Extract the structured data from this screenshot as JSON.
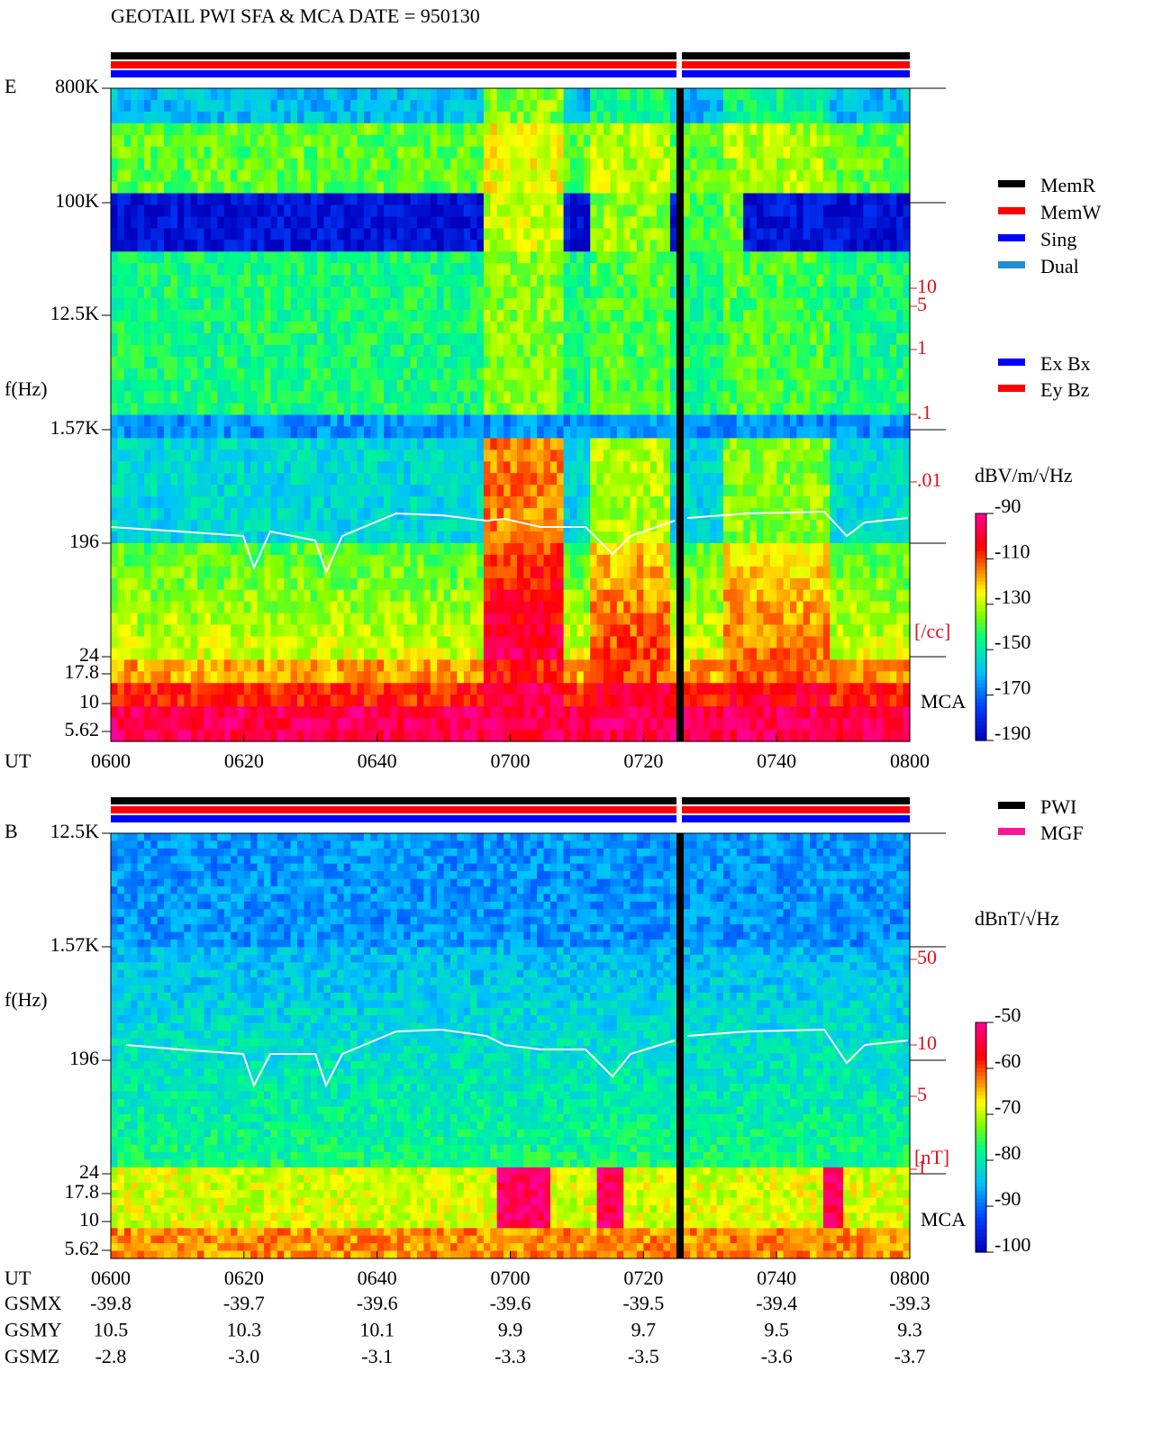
{
  "title": "GEOTAIL  PWI SFA & MCA   DATE = 950130",
  "panels": [
    {
      "label": "E",
      "ylabel": "f(Hz)",
      "yticks": [
        "800K",
        "100K",
        "12.5K",
        "1.57K",
        "196",
        "24",
        "17.8",
        "10",
        "5.62"
      ],
      "mca": "MCA",
      "right_ticks": [
        "10",
        "5",
        "1",
        ".1",
        ".01"
      ],
      "right_unit": "[/cc]",
      "colorbar": {
        "unit": "dBV/m/√Hz",
        "lim": [
          -90,
          -190
        ],
        "ticks": [
          -90,
          -110,
          -130,
          -150,
          -170,
          -190
        ]
      }
    },
    {
      "label": "B",
      "ylabel": "f(Hz)",
      "yticks": [
        "12.5K",
        "1.57K",
        "196",
        "24",
        "17.8",
        "10",
        "5.62"
      ],
      "mca": "MCA",
      "right_ticks": [
        "50",
        "10",
        "5",
        "1"
      ],
      "right_unit": "[nT]",
      "colorbar": {
        "unit": "dBnT/√Hz",
        "lim": [
          -50,
          -100
        ],
        "ticks": [
          -50,
          -60,
          -70,
          -80,
          -90,
          -100
        ]
      }
    }
  ],
  "time_axis": {
    "label": "UT",
    "ticks": [
      "0600",
      "0620",
      "0640",
      "0700",
      "0720",
      "0740",
      "0800"
    ]
  },
  "legend_mode": [
    {
      "label": "MemR",
      "color": "#000000"
    },
    {
      "label": "MemW",
      "color": "#ff0000"
    },
    {
      "label": "Sing",
      "color": "#0000ff"
    },
    {
      "label": "Dual",
      "color": "#1e8fd0"
    }
  ],
  "legend_component": [
    {
      "label": "Ex Bx",
      "color": "#0000ff"
    },
    {
      "label": "Ey Bz",
      "color": "#ff0000"
    }
  ],
  "legend_source": [
    {
      "label": "PWI",
      "color": "#000000"
    },
    {
      "label": "MGF",
      "color": "#ff1493"
    }
  ],
  "orbit": [
    {
      "label": "GSMX",
      "values": [
        "-39.8",
        "-39.7",
        "-39.6",
        "-39.6",
        "-39.5",
        "-39.4",
        "-39.3"
      ]
    },
    {
      "label": "GSMY",
      "values": [
        "10.5",
        "10.3",
        "10.1",
        "9.9",
        "9.7",
        "9.5",
        "9.3"
      ]
    },
    {
      "label": "GSMZ",
      "values": [
        "-2.8",
        "-3.0",
        "-3.1",
        "-3.3",
        "-3.5",
        "-3.6",
        "-3.7"
      ]
    }
  ]
}
